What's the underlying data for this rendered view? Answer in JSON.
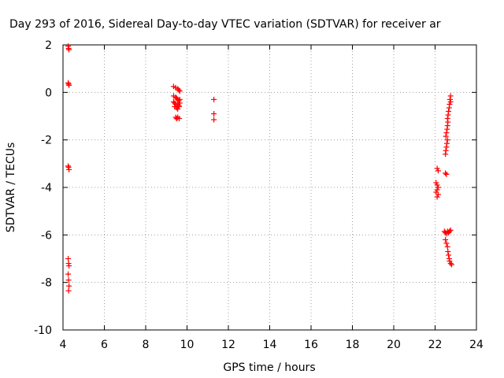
{
  "chart_data": {
    "type": "scatter",
    "title": "Day 293 of 2016, Sidereal Day-to-day VTEC variation (SDTVAR) for receiver ar",
    "xlabel": "GPS time / hours",
    "ylabel": "SDTVAR / TECUs",
    "xlim": [
      4,
      24
    ],
    "ylim": [
      -10,
      2
    ],
    "xticks": [
      4,
      6,
      8,
      10,
      12,
      14,
      16,
      18,
      20,
      22,
      24
    ],
    "yticks": [
      -10,
      -8,
      -6,
      -4,
      -2,
      0,
      2
    ],
    "grid": true,
    "marker": "plus",
    "color": "#ff0000",
    "series": [
      {
        "points": [
          [
            4.25,
            1.95
          ],
          [
            4.27,
            1.85
          ],
          [
            4.29,
            1.8
          ],
          [
            4.25,
            0.4
          ],
          [
            4.27,
            0.35
          ],
          [
            4.29,
            0.3
          ],
          [
            4.25,
            -3.1
          ],
          [
            4.27,
            -3.15
          ],
          [
            4.29,
            -3.25
          ],
          [
            4.25,
            -7.0
          ],
          [
            4.27,
            -7.2
          ],
          [
            4.29,
            -7.3
          ],
          [
            4.25,
            -7.65
          ],
          [
            4.27,
            -7.9
          ],
          [
            4.29,
            -8.15
          ],
          [
            4.27,
            -8.35
          ],
          [
            9.35,
            0.25
          ],
          [
            9.45,
            0.2
          ],
          [
            9.55,
            0.15
          ],
          [
            9.6,
            0.1
          ],
          [
            9.65,
            0.05
          ],
          [
            9.35,
            -0.15
          ],
          [
            9.45,
            -0.2
          ],
          [
            9.5,
            -0.25
          ],
          [
            9.55,
            -0.3
          ],
          [
            9.6,
            -0.35
          ],
          [
            9.65,
            -0.3
          ],
          [
            9.35,
            -0.4
          ],
          [
            9.4,
            -0.45
          ],
          [
            9.45,
            -0.5
          ],
          [
            9.55,
            -0.5
          ],
          [
            9.6,
            -0.55
          ],
          [
            9.65,
            -0.45
          ],
          [
            9.4,
            -0.6
          ],
          [
            9.5,
            -0.65
          ],
          [
            9.55,
            -0.7
          ],
          [
            9.62,
            -0.6
          ],
          [
            9.45,
            -1.05
          ],
          [
            9.5,
            -1.1
          ],
          [
            9.55,
            -1.05
          ],
          [
            9.62,
            -1.1
          ],
          [
            11.3,
            -0.3
          ],
          [
            11.3,
            -0.9
          ],
          [
            11.3,
            -1.15
          ],
          [
            22.1,
            -3.2
          ],
          [
            22.15,
            -3.3
          ],
          [
            22.05,
            -3.8
          ],
          [
            22.1,
            -3.9
          ],
          [
            22.15,
            -4.0
          ],
          [
            22.1,
            -4.1
          ],
          [
            22.05,
            -4.2
          ],
          [
            22.15,
            -4.3
          ],
          [
            22.1,
            -4.4
          ],
          [
            22.5,
            -3.4
          ],
          [
            22.55,
            -3.45
          ],
          [
            22.5,
            -2.6
          ],
          [
            22.52,
            -2.45
          ],
          [
            22.55,
            -2.3
          ],
          [
            22.57,
            -2.15
          ],
          [
            22.6,
            -2.0
          ],
          [
            22.52,
            -1.85
          ],
          [
            22.55,
            -1.7
          ],
          [
            22.58,
            -1.55
          ],
          [
            22.6,
            -1.4
          ],
          [
            22.62,
            -1.25
          ],
          [
            22.6,
            -1.1
          ],
          [
            22.63,
            -0.95
          ],
          [
            22.65,
            -0.8
          ],
          [
            22.68,
            -0.65
          ],
          [
            22.7,
            -0.5
          ],
          [
            22.75,
            -0.4
          ],
          [
            22.72,
            -0.3
          ],
          [
            22.75,
            -0.15
          ],
          [
            22.45,
            -5.85
          ],
          [
            22.5,
            -5.9
          ],
          [
            22.55,
            -5.95
          ],
          [
            22.6,
            -5.85
          ],
          [
            22.65,
            -5.9
          ],
          [
            22.7,
            -5.85
          ],
          [
            22.75,
            -5.8
          ],
          [
            22.5,
            -6.2
          ],
          [
            22.55,
            -6.35
          ],
          [
            22.6,
            -6.5
          ],
          [
            22.62,
            -6.7
          ],
          [
            22.65,
            -6.85
          ],
          [
            22.68,
            -7.0
          ],
          [
            22.7,
            -7.1
          ],
          [
            22.75,
            -7.2
          ],
          [
            22.8,
            -7.25
          ]
        ]
      }
    ]
  }
}
